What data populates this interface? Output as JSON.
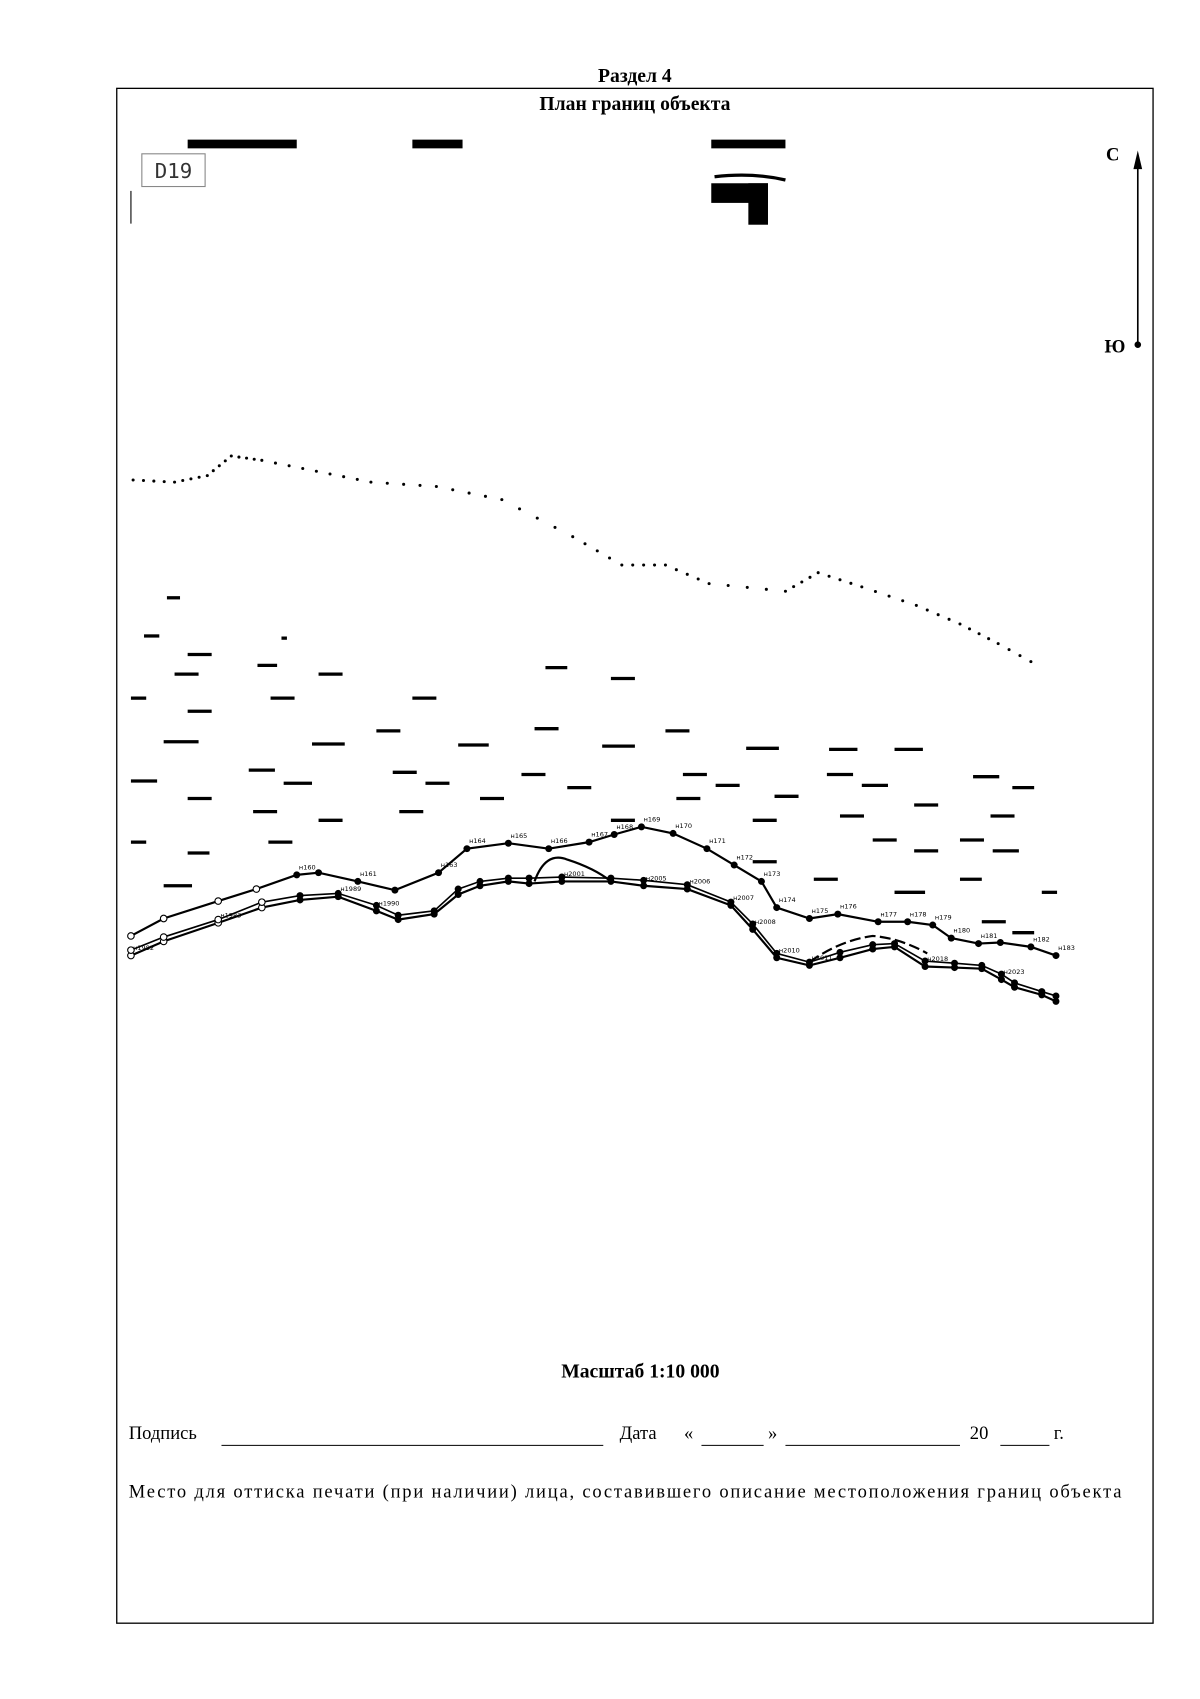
{
  "header": {
    "section": "Раздел 4",
    "title": "План границ объекта"
  },
  "sheet_label": "D19",
  "compass": {
    "north": "С",
    "south": "Ю"
  },
  "map": {
    "points": [
      "н160",
      "н161",
      "н163",
      "н164",
      "н165",
      "н166",
      "н167",
      "н168",
      "н169",
      "н170",
      "н171",
      "н172",
      "н173",
      "н174",
      "н175",
      "н176",
      "н177",
      "н178",
      "н179",
      "н180",
      "н181",
      "н182",
      "н183",
      "н1989",
      "н1990",
      "н2001",
      "н2005",
      "н2006",
      "н2007",
      "н2008",
      "н2010",
      "н2011",
      "н2018",
      "н2023",
      "н1983",
      "н1982"
    ]
  },
  "scale": "Масштаб 1:10 000",
  "signature": {
    "label": "Подпись",
    "date": "Дата",
    "open_quote": "«",
    "close_quote": "»",
    "century": "20",
    "year_suffix": "г."
  },
  "stamp": "Место для оттиска печати (при наличии) лица, составившего описание местоположения границ объекта"
}
